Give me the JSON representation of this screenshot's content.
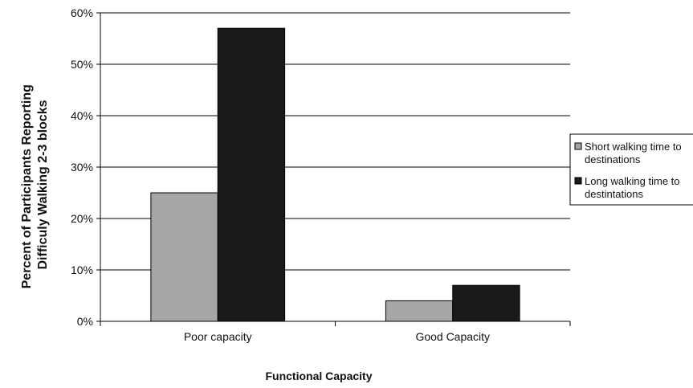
{
  "chart_data": {
    "type": "bar",
    "categories": [
      "Poor capacity",
      "Good Capacity"
    ],
    "series": [
      {
        "name_lines": [
          "Short walking time to",
          "destinations"
        ],
        "values": [
          25,
          4
        ],
        "color": "#a6a6a6"
      },
      {
        "name_lines": [
          "Long walking time to",
          "destintations"
        ],
        "values": [
          57,
          7
        ],
        "color": "#1a1a1a"
      }
    ],
    "xlabel": "Functional Capacity",
    "ylabel_lines": [
      "Percent of Participants Reporting",
      "Difficuly Walking 2-3 blocks"
    ],
    "ylim": [
      0,
      60
    ],
    "yticks": [
      0,
      10,
      20,
      30,
      40,
      50,
      60
    ],
    "ytick_suffix": "%",
    "grid": true,
    "legend_position": "right"
  }
}
